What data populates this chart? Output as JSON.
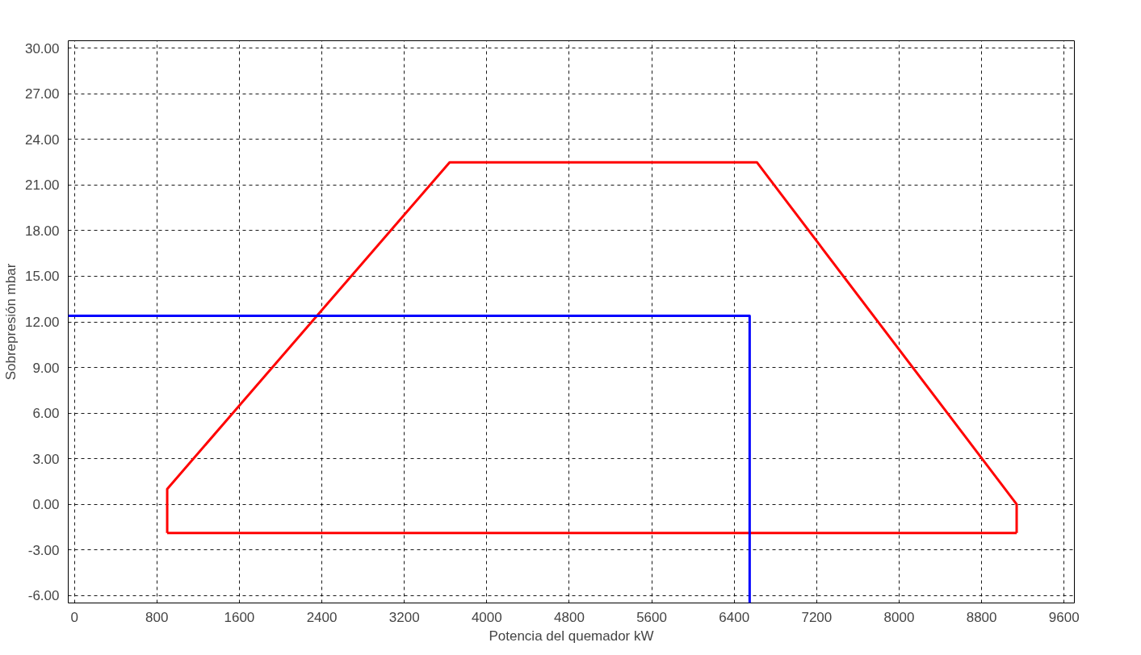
{
  "chart_data": {
    "type": "line",
    "xlabel": "Potencia del quemador kW",
    "ylabel": "Sobrepresión mbar",
    "series": [
      {
        "color": "#ff0000",
        "x": [
          900,
          900,
          3640,
          6620,
          9140,
          9140
        ],
        "values": [
          -1.9,
          1.0,
          22.5,
          22.5,
          0.0,
          -1.9
        ]
      },
      {
        "color": "#ff0000",
        "x": [
          900,
          9140
        ],
        "values": [
          -1.9,
          -1.9
        ]
      },
      {
        "color": "#0000ff",
        "x": [
          -60,
          6550,
          6550
        ],
        "values": [
          12.4,
          12.4,
          -6.5
        ]
      }
    ],
    "xlim": [
      -60,
      9700
    ],
    "ylim": [
      -6.5,
      30.5
    ],
    "xticks": [
      0,
      800,
      1600,
      2400,
      3200,
      4000,
      4800,
      5600,
      6400,
      7200,
      8000,
      8800,
      9600
    ],
    "yticks": [
      {
        "value": -6,
        "label": "-6.00"
      },
      {
        "value": -3,
        "label": "-3.00"
      },
      {
        "value": 0,
        "label": "0.00"
      },
      {
        "value": 3,
        "label": "3.00"
      },
      {
        "value": 6,
        "label": "6.00"
      },
      {
        "value": 9,
        "label": "9.00"
      },
      {
        "value": 12,
        "label": "12.00"
      },
      {
        "value": 15,
        "label": "15.00"
      },
      {
        "value": 18,
        "label": "18.00"
      },
      {
        "value": 21,
        "label": "21.00"
      },
      {
        "value": 24,
        "label": "24.00"
      },
      {
        "value": 27,
        "label": "27.00"
      },
      {
        "value": 30,
        "label": "30.00"
      }
    ],
    "grid": true,
    "line_style": "solid"
  }
}
